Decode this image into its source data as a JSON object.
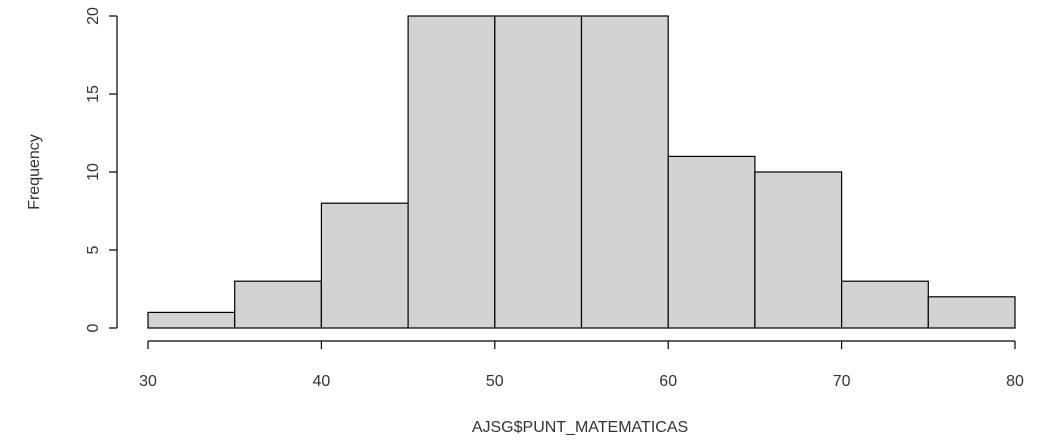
{
  "chart_data": {
    "type": "bar",
    "subtype": "histogram",
    "bins": [
      {
        "x0": 30,
        "x1": 35,
        "count": 1
      },
      {
        "x0": 35,
        "x1": 40,
        "count": 3
      },
      {
        "x0": 40,
        "x1": 45,
        "count": 8
      },
      {
        "x0": 45,
        "x1": 50,
        "count": 20
      },
      {
        "x0": 50,
        "x1": 55,
        "count": 20
      },
      {
        "x0": 55,
        "x1": 60,
        "count": 20
      },
      {
        "x0": 60,
        "x1": 65,
        "count": 11
      },
      {
        "x0": 65,
        "x1": 70,
        "count": 10
      },
      {
        "x0": 70,
        "x1": 75,
        "count": 3
      },
      {
        "x0": 75,
        "x1": 80,
        "count": 2
      }
    ],
    "xlabel": "AJSG$PUNT_MATEMATICAS",
    "ylabel": "Frequency",
    "xlim": [
      30,
      80
    ],
    "ylim": [
      0,
      20
    ],
    "x_ticks": [
      "30",
      "40",
      "50",
      "60",
      "70",
      "80"
    ],
    "y_ticks": [
      "0",
      "5",
      "10",
      "15",
      "20"
    ],
    "grid": false,
    "bar_fill": "#d3d3d3",
    "bar_stroke": "#000000"
  }
}
